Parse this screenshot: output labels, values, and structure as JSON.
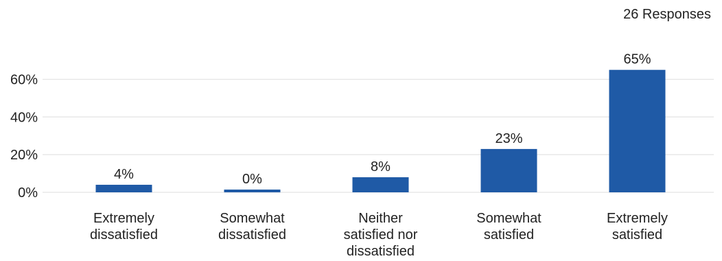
{
  "header": {
    "responses_label": "26 Responses"
  },
  "colors": {
    "bar": "#1f5aa6",
    "grid": "#e3e3e3",
    "text": "#222222"
  },
  "chart_data": {
    "type": "bar",
    "title": "",
    "xlabel": "",
    "ylabel": "",
    "categories": [
      [
        "Extremely",
        "dissatisfied"
      ],
      [
        "Somewhat",
        "dissatisfied"
      ],
      [
        "Neither",
        "satisfied nor",
        "dissatisfied"
      ],
      [
        "Somewhat",
        "satisfied"
      ],
      [
        "Extremely",
        "satisfied"
      ]
    ],
    "values": [
      4,
      0,
      8,
      23,
      65
    ],
    "value_labels": [
      "4%",
      "0%",
      "8%",
      "23%",
      "65%"
    ],
    "ylim": [
      0,
      70
    ],
    "yticks": [
      0,
      20,
      40,
      60
    ],
    "ytick_labels": [
      "0%",
      "20%",
      "40%",
      "60%"
    ],
    "grid": true,
    "legend": "none"
  }
}
